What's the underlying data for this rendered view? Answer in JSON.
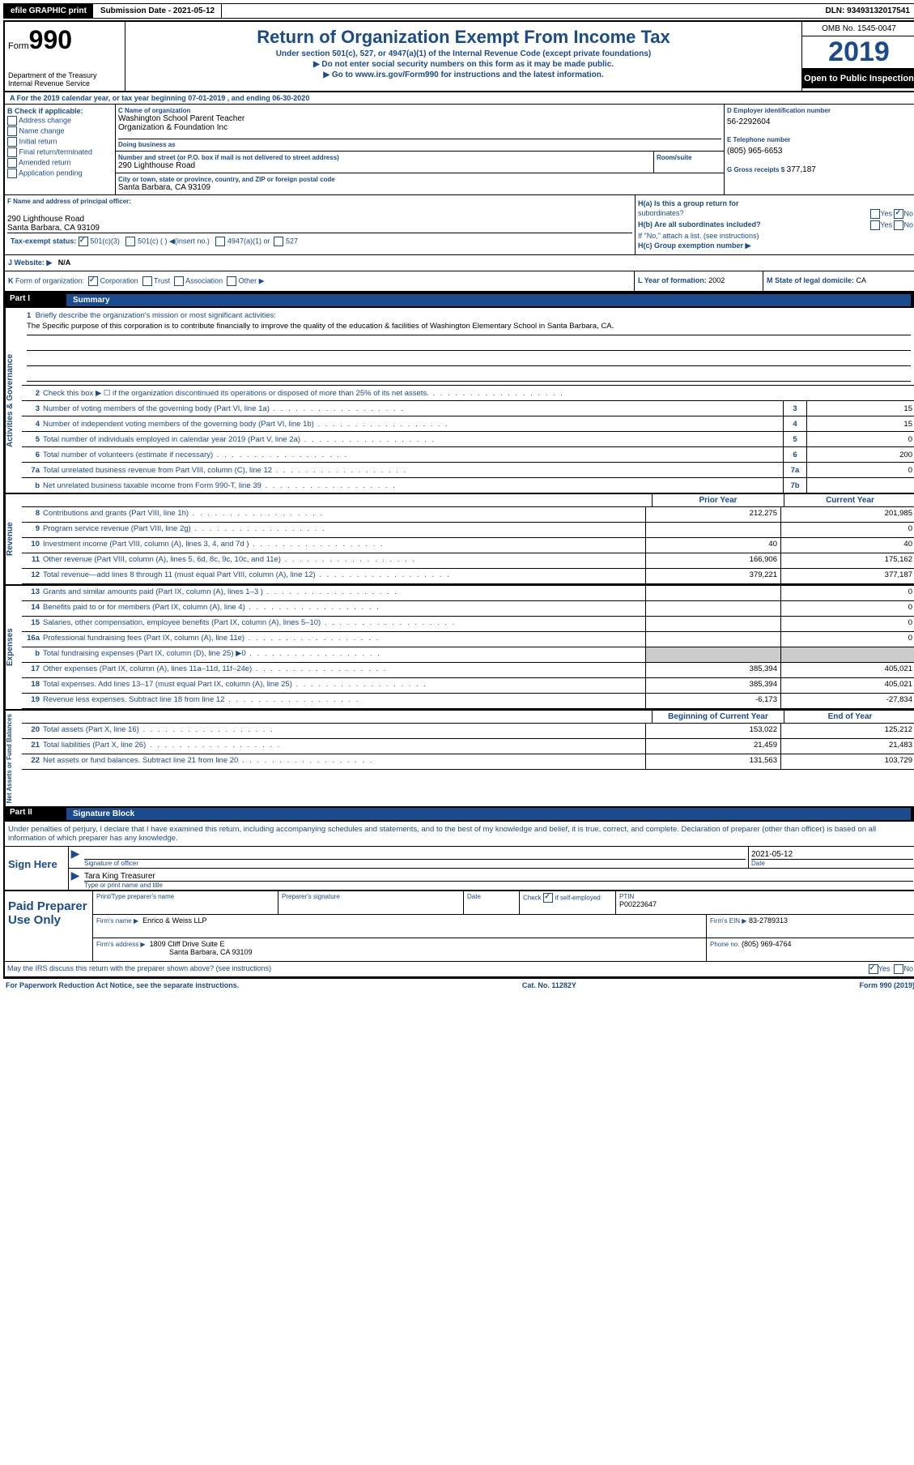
{
  "topbar": {
    "efile": "efile GRAPHIC print",
    "submission": "Submission Date - 2021-05-12",
    "dln": "DLN: 93493132017541"
  },
  "header": {
    "form_prefix": "Form",
    "form_num": "990",
    "dept": "Department of the Treasury",
    "irs": "Internal Revenue Service",
    "title": "Return of Organization Exempt From Income Tax",
    "sub1": "Under section 501(c), 527, or 4947(a)(1) of the Internal Revenue Code (except private foundations)",
    "sub2": "▶ Do not enter social security numbers on this form as it may be made public.",
    "sub3_pre": "▶ Go to ",
    "sub3_link": "www.irs.gov/Form990",
    "sub3_post": " for instructions and the latest information.",
    "omb": "OMB No. 1545-0047",
    "year": "2019",
    "open": "Open to Public Inspection"
  },
  "row_a": "A For the 2019 calendar year, or tax year beginning 07-01-2019     , and ending 06-30-2020",
  "section_b": {
    "title": "B Check if applicable:",
    "items": [
      "Address change",
      "Name change",
      "Initial return",
      "Final return/terminated",
      "Amended return",
      "Application pending"
    ]
  },
  "section_c": {
    "name_lbl": "C Name of organization",
    "name1": "Washington School Parent Teacher",
    "name2": "Organization & Foundation Inc",
    "dba_lbl": "Doing business as",
    "addr_lbl": "Number and street (or P.O. box if mail is not delivered to street address)",
    "addr": "290 Lighthouse Road",
    "room_lbl": "Room/suite",
    "city_lbl": "City or town, state or province, country, and ZIP or foreign postal code",
    "city": "Santa Barbara, CA  93109"
  },
  "section_d": {
    "ein_lbl": "D Employer identification number",
    "ein": "56-2292604",
    "tel_lbl": "E Telephone number",
    "tel": "(805) 965-6653",
    "gross_lbl": "G Gross receipts $",
    "gross": "377,187"
  },
  "section_f": {
    "lbl": "F  Name and address of principal officer:",
    "addr1": "290 Lighthouse Road",
    "addr2": "Santa Barbara, CA  93109"
  },
  "section_h": {
    "ha": "H(a)  Is this a group return for",
    "ha2": "subordinates?",
    "hb": "H(b)  Are all subordinates included?",
    "hb2": "If \"No,\" attach a list. (see instructions)",
    "hc": "H(c)  Group exemption number ▶",
    "yes": "Yes",
    "no": "No"
  },
  "tax_status": {
    "lbl": "Tax-exempt status:",
    "opt1": "501(c)(3)",
    "opt2": "501(c) (  ) ◀(insert no.)",
    "opt3": "4947(a)(1) or",
    "opt4": "527"
  },
  "row_j": {
    "lbl": "J   Website: ▶",
    "val": "N/A"
  },
  "row_k": "K Form of organization:       Corporation       Trust       Association       Other ▶",
  "row_l": {
    "lbl": "L Year of formation:",
    "val": "2002"
  },
  "row_m": {
    "lbl": "M State of legal domicile:",
    "val": "CA"
  },
  "part1": {
    "label": "Part I",
    "title": "Summary"
  },
  "side_labels": {
    "act": "Activities & Governance",
    "rev": "Revenue",
    "exp": "Expenses",
    "net": "Net Assets or Fund Balances"
  },
  "mission": {
    "num": "1",
    "label": "Briefly describe the organization's mission or most significant activities:",
    "text": "The Specific purpose of this corporation is to contribute financially to improve the quality of the education & facilities of Washington Elementary School in Santa Barbara, CA."
  },
  "lines_gov": [
    {
      "n": "2",
      "t": "Check this box ▶ ☐  if the organization discontinued its operations or disposed of more than 25% of its net assets.",
      "box": "",
      "val": ""
    },
    {
      "n": "3",
      "t": "Number of voting members of the governing body (Part VI, line 1a)",
      "box": "3",
      "val": "15"
    },
    {
      "n": "4",
      "t": "Number of independent voting members of the governing body (Part VI, line 1b)",
      "box": "4",
      "val": "15"
    },
    {
      "n": "5",
      "t": "Total number of individuals employed in calendar year 2019 (Part V, line 2a)",
      "box": "5",
      "val": "0"
    },
    {
      "n": "6",
      "t": "Total number of volunteers (estimate if necessary)",
      "box": "6",
      "val": "200"
    },
    {
      "n": "7a",
      "t": "Total unrelated business revenue from Part VIII, column (C), line 12",
      "box": "7a",
      "val": "0"
    },
    {
      "n": "b",
      "t": "Net unrelated business taxable income from Form 990-T, line 39",
      "box": "7b",
      "val": ""
    }
  ],
  "col_headers": {
    "prior": "Prior Year",
    "current": "Current Year"
  },
  "lines_rev": [
    {
      "n": "8",
      "t": "Contributions and grants (Part VIII, line 1h)",
      "p": "212,275",
      "c": "201,985"
    },
    {
      "n": "9",
      "t": "Program service revenue (Part VIII, line 2g)",
      "p": "",
      "c": "0"
    },
    {
      "n": "10",
      "t": "Investment income (Part VIII, column (A), lines 3, 4, and 7d )",
      "p": "40",
      "c": "40"
    },
    {
      "n": "11",
      "t": "Other revenue (Part VIII, column (A), lines 5, 6d, 8c, 9c, 10c, and 11e)",
      "p": "166,906",
      "c": "175,162"
    },
    {
      "n": "12",
      "t": "Total revenue—add lines 8 through 11 (must equal Part VIII, column (A), line 12)",
      "p": "379,221",
      "c": "377,187"
    }
  ],
  "lines_exp": [
    {
      "n": "13",
      "t": "Grants and similar amounts paid (Part IX, column (A), lines 1–3 )",
      "p": "",
      "c": "0"
    },
    {
      "n": "14",
      "t": "Benefits paid to or for members (Part IX, column (A), line 4)",
      "p": "",
      "c": "0"
    },
    {
      "n": "15",
      "t": "Salaries, other compensation, employee benefits (Part IX, column (A), lines 5–10)",
      "p": "",
      "c": "0"
    },
    {
      "n": "16a",
      "t": "Professional fundraising fees (Part IX, column (A), line 11e)",
      "p": "",
      "c": "0"
    },
    {
      "n": "b",
      "t": "Total fundraising expenses (Part IX, column (D), line 25) ▶0",
      "p": "shaded",
      "c": "shaded"
    },
    {
      "n": "17",
      "t": "Other expenses (Part IX, column (A), lines 11a–11d, 11f–24e)",
      "p": "385,394",
      "c": "405,021"
    },
    {
      "n": "18",
      "t": "Total expenses. Add lines 13–17 (must equal Part IX, column (A), line 25)",
      "p": "385,394",
      "c": "405,021"
    },
    {
      "n": "19",
      "t": "Revenue less expenses. Subtract line 18 from line 12",
      "p": "-6,173",
      "c": "-27,834"
    }
  ],
  "col_headers2": {
    "begin": "Beginning of Current Year",
    "end": "End of Year"
  },
  "lines_net": [
    {
      "n": "20",
      "t": "Total assets (Part X, line 16)",
      "p": "153,022",
      "c": "125,212"
    },
    {
      "n": "21",
      "t": "Total liabilities (Part X, line 26)",
      "p": "21,459",
      "c": "21,483"
    },
    {
      "n": "22",
      "t": "Net assets or fund balances. Subtract line 21 from line 20",
      "p": "131,563",
      "c": "103,729"
    }
  ],
  "part2": {
    "label": "Part II",
    "title": "Signature Block"
  },
  "sig_intro": "Under penalties of perjury, I declare that I have examined this return, including accompanying schedules and statements, and to the best of my knowledge and belief, it is true, correct, and complete. Declaration of preparer (other than officer) is based on all information of which preparer has any knowledge.",
  "sign": {
    "here": "Sign Here",
    "sig_lbl": "Signature of officer",
    "date_val": "2021-05-12",
    "date_lbl": "Date",
    "name": "Tara King Treasurer",
    "name_lbl": "Type or print name and title"
  },
  "prep": {
    "title": "Paid Preparer Use Only",
    "name_lbl": "Print/Type preparer's name",
    "sig_lbl": "Preparer's signature",
    "date_lbl": "Date",
    "check_lbl": "Check",
    "self_emp": "if self-employed",
    "ptin_lbl": "PTIN",
    "ptin": "P00223647",
    "firm_name_lbl": "Firm's name      ▶",
    "firm_name": "Enrico & Weiss LLP",
    "firm_ein_lbl": "Firm's EIN ▶",
    "firm_ein": "83-2789313",
    "firm_addr_lbl": "Firm's address ▶",
    "firm_addr1": "1809 Cliff Drive Suite E",
    "firm_addr2": "Santa Barbara, CA  93109",
    "phone_lbl": "Phone no.",
    "phone": "(805) 969-4764"
  },
  "footer": {
    "discuss": "May the IRS discuss this return with the preparer shown above? (see instructions)",
    "yes": "Yes",
    "no": "No",
    "paperwork": "For Paperwork Reduction Act Notice, see the separate instructions.",
    "cat": "Cat. No. 11282Y",
    "form": "Form 990 (2019)"
  }
}
